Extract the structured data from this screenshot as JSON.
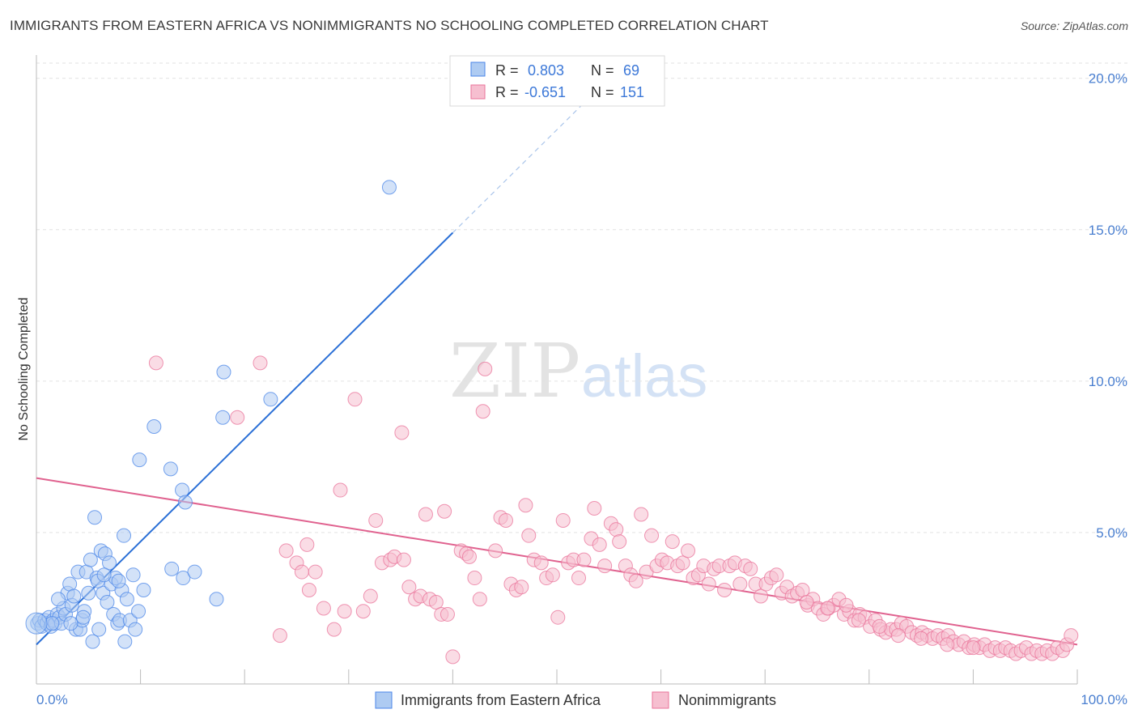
{
  "title": "IMMIGRANTS FROM EASTERN AFRICA VS NONIMMIGRANTS NO SCHOOLING COMPLETED CORRELATION CHART",
  "source": "Source: ZipAtlas.com",
  "watermark": {
    "zip": "ZIP",
    "atlas": "atlas"
  },
  "colors": {
    "blue": "#4a86e8",
    "blue_fill": "#aecbf2",
    "blue_line": "#2a6fd6",
    "pink": "#e9739a",
    "pink_fill": "#f6bfd0",
    "pink_line": "#e0628f",
    "axis_label": "#4a7fd0"
  },
  "stats": {
    "r_label": "R =",
    "n_label": "N =",
    "blue_r": "0.803",
    "blue_n": "69",
    "pink_r": "-0.651",
    "pink_n": "151"
  },
  "chart_data": {
    "type": "scatter",
    "xlabel": "",
    "ylabel": "No Schooling Completed",
    "xlim": [
      0,
      100
    ],
    "ylim": [
      0,
      20.5
    ],
    "x_tick_labels": [
      "0.0%",
      "100.0%"
    ],
    "y_ticks": [
      5,
      10,
      15,
      20
    ],
    "y_tick_labels": [
      "5.0%",
      "10.0%",
      "15.0%",
      "20.0%"
    ],
    "grid": true,
    "series": [
      {
        "name": "Immigrants from Eastern Africa",
        "color": "#4a86e8",
        "trend": {
          "x0": 0,
          "y0": 1.3,
          "x1": 40,
          "y1": 14.9,
          "dash_to_x": 52.5
        },
        "points": [
          [
            0.1,
            2.0
          ],
          [
            0.3,
            2.1
          ],
          [
            0.5,
            1.9
          ],
          [
            0.8,
            2.1
          ],
          [
            1.0,
            2.0
          ],
          [
            1.2,
            2.2
          ],
          [
            1.4,
            1.9
          ],
          [
            1.6,
            2.1
          ],
          [
            1.8,
            2.0
          ],
          [
            2.0,
            2.3
          ],
          [
            2.2,
            2.2
          ],
          [
            2.4,
            2.0
          ],
          [
            2.6,
            2.5
          ],
          [
            2.8,
            2.3
          ],
          [
            3.0,
            3.0
          ],
          [
            3.2,
            3.3
          ],
          [
            3.4,
            2.6
          ],
          [
            3.6,
            2.9
          ],
          [
            3.8,
            1.8
          ],
          [
            4.0,
            3.7
          ],
          [
            4.2,
            1.8
          ],
          [
            4.4,
            2.1
          ],
          [
            4.6,
            2.4
          ],
          [
            4.8,
            3.7
          ],
          [
            5.0,
            3.0
          ],
          [
            5.2,
            4.1
          ],
          [
            5.4,
            1.4
          ],
          [
            5.6,
            5.5
          ],
          [
            5.8,
            3.5
          ],
          [
            6.0,
            1.8
          ],
          [
            6.2,
            4.4
          ],
          [
            6.4,
            3.0
          ],
          [
            6.6,
            4.3
          ],
          [
            6.8,
            2.7
          ],
          [
            7.0,
            4.0
          ],
          [
            7.2,
            3.3
          ],
          [
            7.4,
            2.3
          ],
          [
            7.6,
            3.5
          ],
          [
            7.8,
            2.0
          ],
          [
            8.0,
            2.1
          ],
          [
            8.2,
            3.1
          ],
          [
            8.4,
            4.9
          ],
          [
            8.5,
            1.4
          ],
          [
            8.7,
            2.8
          ],
          [
            9.0,
            2.1
          ],
          [
            9.3,
            3.6
          ],
          [
            9.5,
            1.8
          ],
          [
            9.8,
            2.4
          ],
          [
            10.3,
            3.1
          ],
          [
            1.5,
            2.0
          ],
          [
            2.1,
            2.8
          ],
          [
            3.3,
            2.0
          ],
          [
            4.5,
            2.2
          ],
          [
            5.9,
            3.4
          ],
          [
            6.5,
            3.6
          ],
          [
            7.9,
            3.4
          ],
          [
            9.9,
            7.4
          ],
          [
            11.3,
            8.5
          ],
          [
            12.9,
            7.1
          ],
          [
            13.0,
            3.8
          ],
          [
            14.0,
            6.4
          ],
          [
            14.3,
            6.0
          ],
          [
            14.1,
            3.5
          ],
          [
            15.2,
            3.7
          ],
          [
            17.3,
            2.8
          ],
          [
            17.9,
            8.8
          ],
          [
            18.0,
            10.3
          ],
          [
            22.5,
            9.4
          ],
          [
            33.9,
            16.4
          ]
        ]
      },
      {
        "name": "Nonimmigrants",
        "color": "#e9739a",
        "trend": {
          "x0": 0,
          "y0": 6.8,
          "x1": 100,
          "y1": 1.3
        },
        "points": [
          [
            11.5,
            10.6
          ],
          [
            19.3,
            8.8
          ],
          [
            21.5,
            10.6
          ],
          [
            23.4,
            1.6
          ],
          [
            24.0,
            4.4
          ],
          [
            25.0,
            4.0
          ],
          [
            25.5,
            3.7
          ],
          [
            26.0,
            4.6
          ],
          [
            26.2,
            3.1
          ],
          [
            26.8,
            3.7
          ],
          [
            27.6,
            2.5
          ],
          [
            28.6,
            1.8
          ],
          [
            29.2,
            6.4
          ],
          [
            29.6,
            2.4
          ],
          [
            30.6,
            9.4
          ],
          [
            31.4,
            2.4
          ],
          [
            32.1,
            2.9
          ],
          [
            32.6,
            5.4
          ],
          [
            33.2,
            4.0
          ],
          [
            34.0,
            4.1
          ],
          [
            34.4,
            4.2
          ],
          [
            35.1,
            8.3
          ],
          [
            35.3,
            4.1
          ],
          [
            35.8,
            3.2
          ],
          [
            36.4,
            2.8
          ],
          [
            36.9,
            2.9
          ],
          [
            37.4,
            5.6
          ],
          [
            37.8,
            2.8
          ],
          [
            38.4,
            2.7
          ],
          [
            38.9,
            2.3
          ],
          [
            39.5,
            2.3
          ],
          [
            39.2,
            5.7
          ],
          [
            40.0,
            0.9
          ],
          [
            40.8,
            4.4
          ],
          [
            41.3,
            4.3
          ],
          [
            41.6,
            4.2
          ],
          [
            42.1,
            3.5
          ],
          [
            42.6,
            2.8
          ],
          [
            43.1,
            10.4
          ],
          [
            42.9,
            9.0
          ],
          [
            44.1,
            4.4
          ],
          [
            44.6,
            5.5
          ],
          [
            45.1,
            5.4
          ],
          [
            45.6,
            3.3
          ],
          [
            46.1,
            3.1
          ],
          [
            46.6,
            3.2
          ],
          [
            47.0,
            5.9
          ],
          [
            47.3,
            4.9
          ],
          [
            47.8,
            4.1
          ],
          [
            48.5,
            4.0
          ],
          [
            49.0,
            3.5
          ],
          [
            49.6,
            3.6
          ],
          [
            50.1,
            2.2
          ],
          [
            50.6,
            5.4
          ],
          [
            51.1,
            4.0
          ],
          [
            51.6,
            4.1
          ],
          [
            52.1,
            3.5
          ],
          [
            52.6,
            4.1
          ],
          [
            53.3,
            4.8
          ],
          [
            53.6,
            5.8
          ],
          [
            54.1,
            4.6
          ],
          [
            54.6,
            3.9
          ],
          [
            55.2,
            5.3
          ],
          [
            55.7,
            5.1
          ],
          [
            56.0,
            4.7
          ],
          [
            56.6,
            3.9
          ],
          [
            57.1,
            3.6
          ],
          [
            57.6,
            3.4
          ],
          [
            58.1,
            5.6
          ],
          [
            58.6,
            3.7
          ],
          [
            59.1,
            4.9
          ],
          [
            59.6,
            3.9
          ],
          [
            60.1,
            4.1
          ],
          [
            60.6,
            4.0
          ],
          [
            61.1,
            4.7
          ],
          [
            61.6,
            3.9
          ],
          [
            62.1,
            4.0
          ],
          [
            62.6,
            4.4
          ],
          [
            63.1,
            3.5
          ],
          [
            63.6,
            3.6
          ],
          [
            64.1,
            3.9
          ],
          [
            64.6,
            3.3
          ],
          [
            65.1,
            3.8
          ],
          [
            65.6,
            3.9
          ],
          [
            66.1,
            3.1
          ],
          [
            66.6,
            3.9
          ],
          [
            67.1,
            4.0
          ],
          [
            67.6,
            3.3
          ],
          [
            68.1,
            3.9
          ],
          [
            68.6,
            3.8
          ],
          [
            69.1,
            3.3
          ],
          [
            69.6,
            2.9
          ],
          [
            70.1,
            3.3
          ],
          [
            70.6,
            3.5
          ],
          [
            71.1,
            3.6
          ],
          [
            71.6,
            3.0
          ],
          [
            72.1,
            3.2
          ],
          [
            72.6,
            2.9
          ],
          [
            73.1,
            3.0
          ],
          [
            73.6,
            3.1
          ],
          [
            74.1,
            2.6
          ],
          [
            74.6,
            2.8
          ],
          [
            75.1,
            2.5
          ],
          [
            75.6,
            2.3
          ],
          [
            76.1,
            2.5
          ],
          [
            76.6,
            2.6
          ],
          [
            77.1,
            2.8
          ],
          [
            77.6,
            2.3
          ],
          [
            78.1,
            2.4
          ],
          [
            78.6,
            2.1
          ],
          [
            79.1,
            2.3
          ],
          [
            79.6,
            2.2
          ],
          [
            80.1,
            1.9
          ],
          [
            80.6,
            2.1
          ],
          [
            81.1,
            1.8
          ],
          [
            81.6,
            1.7
          ],
          [
            82.1,
            1.8
          ],
          [
            82.6,
            1.8
          ],
          [
            83.1,
            2.0
          ],
          [
            83.6,
            1.9
          ],
          [
            84.1,
            1.7
          ],
          [
            84.6,
            1.6
          ],
          [
            85.1,
            1.7
          ],
          [
            85.6,
            1.6
          ],
          [
            86.1,
            1.5
          ],
          [
            86.6,
            1.6
          ],
          [
            87.1,
            1.5
          ],
          [
            87.6,
            1.6
          ],
          [
            88.1,
            1.4
          ],
          [
            88.6,
            1.3
          ],
          [
            89.1,
            1.4
          ],
          [
            89.6,
            1.2
          ],
          [
            90.1,
            1.3
          ],
          [
            90.6,
            1.2
          ],
          [
            91.1,
            1.3
          ],
          [
            91.6,
            1.1
          ],
          [
            92.1,
            1.2
          ],
          [
            92.6,
            1.1
          ],
          [
            93.1,
            1.2
          ],
          [
            93.6,
            1.1
          ],
          [
            94.1,
            1.0
          ],
          [
            94.6,
            1.1
          ],
          [
            95.1,
            1.2
          ],
          [
            95.6,
            1.0
          ],
          [
            96.1,
            1.1
          ],
          [
            96.6,
            1.0
          ],
          [
            97.1,
            1.1
          ],
          [
            97.6,
            1.0
          ],
          [
            98.1,
            1.2
          ],
          [
            98.6,
            1.1
          ],
          [
            99.0,
            1.3
          ],
          [
            99.4,
            1.6
          ],
          [
            74.0,
            2.7
          ],
          [
            76.0,
            2.5
          ],
          [
            77.8,
            2.6
          ],
          [
            79.0,
            2.1
          ],
          [
            81.0,
            1.9
          ],
          [
            82.8,
            1.6
          ],
          [
            85.0,
            1.5
          ],
          [
            87.5,
            1.3
          ],
          [
            90.0,
            1.2
          ]
        ]
      }
    ]
  },
  "legend_bottom": [
    "Immigrants from Eastern Africa",
    "Nonimmigrants"
  ]
}
